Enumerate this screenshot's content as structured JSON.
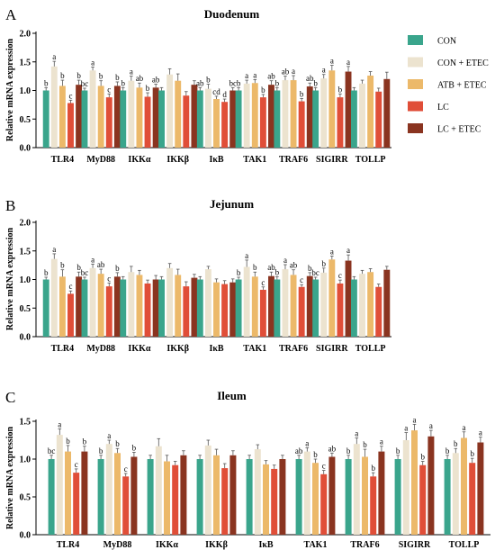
{
  "legend": {
    "position": "top-right",
    "items": [
      {
        "label": "CON",
        "color": "#3aa58c"
      },
      {
        "label": "CON + ETEC",
        "color": "#ece3cf"
      },
      {
        "label": "ATB + ETEC",
        "color": "#ecb96a"
      },
      {
        "label": "LC",
        "color": "#e04e38"
      },
      {
        "label": "LC + ETEC",
        "color": "#8a3420"
      }
    ]
  },
  "chart_data": [
    {
      "panel_letter": "A",
      "type": "bar",
      "title": "Duodenum",
      "ylabel": "Relative mRNA expression",
      "ylim": [
        0,
        2.0
      ],
      "yticks": [
        "0.0",
        "0.5",
        "1.0",
        "1.5",
        "2.0"
      ],
      "categories": [
        "TLR4",
        "MyD88",
        "IKKα",
        "IKKβ",
        "IκB",
        "TAK1",
        "TRAF6",
        "SIGIRR",
        "TOLLP"
      ],
      "series": [
        {
          "name": "CON",
          "values": [
            1.0,
            1.0,
            1.0,
            1.0,
            1.0,
            1.0,
            1.0,
            1.0,
            1.0
          ],
          "errors": [
            0.05,
            0.04,
            0.05,
            0.05,
            0.05,
            0.05,
            0.05,
            0.05,
            0.05
          ],
          "letters": [
            "b",
            "bc",
            "b",
            "",
            "ab",
            "b",
            "b",
            "b",
            ""
          ]
        },
        {
          "name": "CON + ETEC",
          "values": [
            1.42,
            1.35,
            1.17,
            1.28,
            1.03,
            1.12,
            1.18,
            1.21,
            1.12
          ],
          "errors": [
            0.09,
            0.06,
            0.08,
            0.1,
            0.08,
            0.06,
            0.07,
            0.07,
            0.06
          ],
          "letters": [
            "a",
            "a",
            "a",
            "",
            "b",
            "a",
            "ab",
            "a",
            ""
          ]
        },
        {
          "name": "ATB + ETEC",
          "values": [
            1.08,
            1.08,
            1.05,
            1.17,
            0.85,
            1.13,
            1.18,
            1.35,
            1.26
          ],
          "errors": [
            0.1,
            0.09,
            0.08,
            0.12,
            0.05,
            0.06,
            0.08,
            0.09,
            0.07
          ],
          "letters": [
            "b",
            "b",
            "ab",
            "",
            "cd",
            "a",
            "a",
            "a",
            ""
          ]
        },
        {
          "name": "LC",
          "values": [
            0.78,
            0.88,
            0.89,
            0.91,
            0.8,
            0.88,
            0.81,
            0.88,
            0.98
          ],
          "errors": [
            0.05,
            0.06,
            0.07,
            0.07,
            0.05,
            0.05,
            0.05,
            0.06,
            0.06
          ],
          "letters": [
            "c",
            "c",
            "b",
            "",
            "d",
            "b",
            "b",
            "b",
            ""
          ]
        },
        {
          "name": "LC + ETEC",
          "values": [
            1.1,
            1.08,
            1.05,
            1.1,
            1.0,
            1.1,
            1.07,
            1.33,
            1.2
          ],
          "errors": [
            0.08,
            0.07,
            0.06,
            0.07,
            0.05,
            0.07,
            0.06,
            0.09,
            0.12
          ],
          "letters": [
            "b",
            "b",
            "ab",
            "",
            "bc",
            "ab",
            "ab",
            "a",
            ""
          ]
        }
      ]
    },
    {
      "panel_letter": "B",
      "type": "bar",
      "title": "Jejunum",
      "ylabel": "Relative mRNA expression",
      "ylim": [
        0,
        2.0
      ],
      "yticks": [
        "0.0",
        "0.5",
        "1.0",
        "1.5",
        "2.0"
      ],
      "categories": [
        "TLR4",
        "MyD88",
        "IKKα",
        "IKKβ",
        "IκB",
        "TAK1",
        "TRAF6",
        "SIGIRR",
        "TOLLP"
      ],
      "series": [
        {
          "name": "CON",
          "values": [
            1.0,
            1.0,
            1.0,
            1.0,
            1.0,
            1.0,
            1.0,
            1.0,
            1.0
          ],
          "errors": [
            0.04,
            0.04,
            0.05,
            0.05,
            0.05,
            0.04,
            0.05,
            0.04,
            0.05
          ],
          "letters": [
            "b",
            "bc",
            "",
            "",
            "",
            "b",
            "b",
            "bc",
            ""
          ]
        },
        {
          "name": "CON + ETEC",
          "values": [
            1.36,
            1.2,
            1.13,
            1.2,
            1.18,
            1.22,
            1.18,
            1.12,
            1.1
          ],
          "errors": [
            0.09,
            0.07,
            0.1,
            0.08,
            0.05,
            0.12,
            0.08,
            0.08,
            0.06
          ],
          "letters": [
            "a",
            "a",
            "",
            "",
            "",
            "a",
            "a",
            "b",
            ""
          ]
        },
        {
          "name": "ATB + ETEC",
          "values": [
            1.05,
            1.1,
            1.08,
            1.08,
            0.95,
            1.05,
            1.08,
            1.35,
            1.13
          ],
          "errors": [
            0.12,
            0.08,
            0.08,
            0.1,
            0.06,
            0.08,
            0.09,
            0.06,
            0.06
          ],
          "letters": [
            "b",
            "ab",
            "",
            "",
            "",
            "b",
            "ab",
            "a",
            ""
          ]
        },
        {
          "name": "LC",
          "values": [
            0.75,
            0.88,
            0.93,
            0.88,
            0.92,
            0.82,
            0.87,
            0.93,
            0.87
          ],
          "errors": [
            0.05,
            0.06,
            0.06,
            0.08,
            0.06,
            0.05,
            0.04,
            0.06,
            0.05
          ],
          "letters": [
            "c",
            "c",
            "",
            "",
            "",
            "c",
            "c",
            "c",
            ""
          ]
        },
        {
          "name": "LC + ETEC",
          "values": [
            1.05,
            1.05,
            1.0,
            1.03,
            0.95,
            1.06,
            1.06,
            1.33,
            1.17
          ],
          "errors": [
            0.08,
            0.07,
            0.07,
            0.06,
            0.06,
            0.07,
            0.06,
            0.1,
            0.06
          ],
          "letters": [
            "b",
            "b",
            "",
            "",
            "",
            "ab",
            "b",
            "a",
            ""
          ]
        }
      ]
    },
    {
      "panel_letter": "C",
      "type": "bar",
      "title": "Ileum",
      "ylabel": "Relative mRNA expression",
      "ylim": [
        0,
        1.5
      ],
      "yticks": [
        "0.0",
        "0.5",
        "1.0",
        "1.5"
      ],
      "categories": [
        "TLR4",
        "MyD88",
        "IKKα",
        "IKKβ",
        "IκB",
        "TAK1",
        "TRAF6",
        "SIGIRR",
        "TOLLP"
      ],
      "series": [
        {
          "name": "CON",
          "values": [
            1.0,
            1.0,
            1.0,
            1.0,
            1.0,
            1.0,
            1.0,
            1.0,
            1.0
          ],
          "errors": [
            0.05,
            0.05,
            0.05,
            0.05,
            0.05,
            0.05,
            0.05,
            0.05,
            0.05
          ],
          "letters": [
            "bc",
            "b",
            "",
            "",
            "",
            "ab",
            "b",
            "b",
            "b"
          ]
        },
        {
          "name": "CON + ETEC",
          "values": [
            1.32,
            1.2,
            1.17,
            1.18,
            1.13,
            1.1,
            1.2,
            1.25,
            1.08
          ],
          "errors": [
            0.08,
            0.05,
            0.1,
            0.07,
            0.06,
            0.05,
            0.08,
            0.1,
            0.06
          ],
          "letters": [
            "a",
            "a",
            "",
            "",
            "",
            "a",
            "a",
            "a",
            "b"
          ]
        },
        {
          "name": "ATB + ETEC",
          "values": [
            1.1,
            1.08,
            0.97,
            1.05,
            0.93,
            0.95,
            1.03,
            1.38,
            1.28
          ],
          "errors": [
            0.08,
            0.06,
            0.08,
            0.08,
            0.05,
            0.05,
            0.1,
            0.08,
            0.08
          ],
          "letters": [
            "b",
            "b",
            "",
            "",
            "",
            "b",
            "b",
            "a",
            "a"
          ]
        },
        {
          "name": "LC",
          "values": [
            0.82,
            0.77,
            0.92,
            0.88,
            0.87,
            0.8,
            0.77,
            0.92,
            0.95
          ],
          "errors": [
            0.05,
            0.04,
            0.05,
            0.06,
            0.05,
            0.05,
            0.05,
            0.05,
            0.06
          ],
          "letters": [
            "c",
            "c",
            "",
            "",
            "",
            "c",
            "b",
            "b",
            "b"
          ]
        },
        {
          "name": "LC + ETEC",
          "values": [
            1.1,
            1.03,
            1.05,
            1.05,
            1.0,
            1.03,
            1.1,
            1.3,
            1.22
          ],
          "errors": [
            0.07,
            0.06,
            0.06,
            0.06,
            0.05,
            0.05,
            0.07,
            0.08,
            0.07
          ],
          "letters": [
            "b",
            "b",
            "",
            "",
            "",
            "ab",
            "a",
            "a",
            "a"
          ]
        }
      ]
    }
  ]
}
